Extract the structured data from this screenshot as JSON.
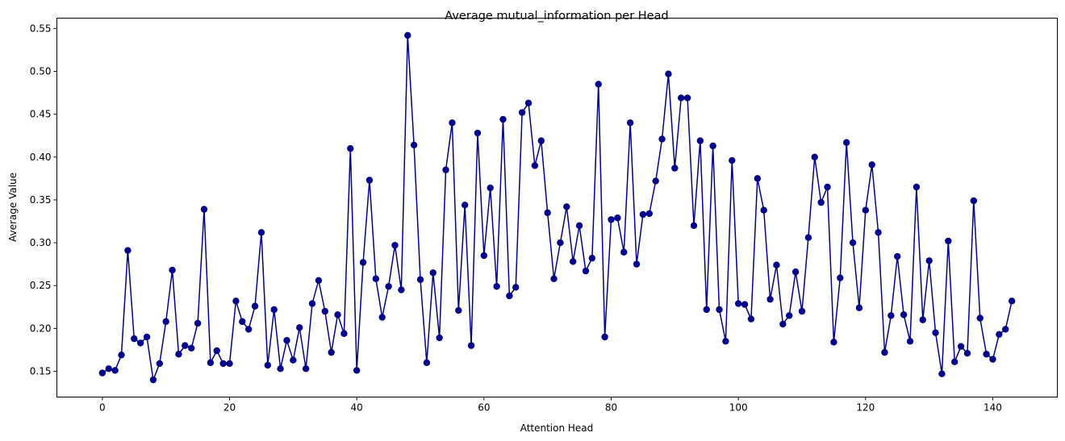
{
  "chart_data": {
    "type": "line",
    "title": "Average mutual_information per Head",
    "xlabel": "Attention Head",
    "ylabel": "Average Value",
    "xlim": [
      -7.15,
      150.15
    ],
    "ylim": [
      0.1199,
      0.5621
    ],
    "xticks": [
      0,
      20,
      40,
      60,
      80,
      100,
      120,
      140
    ],
    "yticks": [
      0.15,
      0.2,
      0.25,
      0.3,
      0.35,
      0.4,
      0.45,
      0.5,
      0.55
    ],
    "ytick_labels": [
      "0.15",
      "0.20",
      "0.25",
      "0.30",
      "0.35",
      "0.40",
      "0.45",
      "0.50",
      "0.55"
    ],
    "grid": false,
    "color": "#00008b",
    "marker": "circle",
    "series": [
      {
        "x": [
          0,
          1,
          2,
          3,
          4,
          5,
          6,
          7,
          8,
          9,
          10,
          11,
          12,
          13,
          14,
          15,
          16,
          17,
          18,
          19,
          20,
          21,
          22,
          23,
          24,
          25,
          26,
          27,
          28,
          29,
          30,
          31,
          32,
          33,
          34,
          35,
          36,
          37,
          38,
          39,
          40,
          41,
          42,
          43,
          44,
          45,
          46,
          47,
          48,
          49,
          50,
          51,
          52,
          53,
          54,
          55,
          56,
          57,
          58,
          59,
          60,
          61,
          62,
          63,
          64,
          65,
          66,
          67,
          68,
          69,
          70,
          71,
          72,
          73,
          74,
          75,
          76,
          77,
          78,
          79,
          80,
          81,
          82,
          83,
          84,
          85,
          86,
          87,
          88,
          89,
          90,
          91,
          92,
          93,
          94,
          95,
          96,
          97,
          98,
          99,
          100,
          101,
          102,
          103,
          104,
          105,
          106,
          107,
          108,
          109,
          110,
          111,
          112,
          113,
          114,
          115,
          116,
          117,
          118,
          119,
          120,
          121,
          122,
          123,
          124,
          125,
          126,
          127,
          128,
          129,
          130,
          131,
          132,
          133,
          134,
          135,
          136,
          137,
          138,
          139,
          140,
          141,
          142,
          143
        ],
        "values": [
          0.148,
          0.153,
          0.151,
          0.169,
          0.291,
          0.188,
          0.183,
          0.19,
          0.14,
          0.159,
          0.208,
          0.268,
          0.17,
          0.18,
          0.177,
          0.206,
          0.339,
          0.16,
          0.174,
          0.159,
          0.159,
          0.232,
          0.208,
          0.199,
          0.226,
          0.312,
          0.157,
          0.222,
          0.153,
          0.186,
          0.163,
          0.201,
          0.153,
          0.229,
          0.256,
          0.22,
          0.172,
          0.216,
          0.194,
          0.41,
          0.151,
          0.277,
          0.373,
          0.258,
          0.213,
          0.249,
          0.297,
          0.245,
          0.542,
          0.414,
          0.257,
          0.16,
          0.265,
          0.189,
          0.385,
          0.44,
          0.221,
          0.344,
          0.18,
          0.428,
          0.285,
          0.364,
          0.249,
          0.444,
          0.238,
          0.248,
          0.452,
          0.463,
          0.39,
          0.419,
          0.335,
          0.258,
          0.3,
          0.342,
          0.278,
          0.32,
          0.267,
          0.282,
          0.485,
          0.19,
          0.327,
          0.329,
          0.289,
          0.44,
          0.275,
          0.333,
          0.334,
          0.372,
          0.421,
          0.497,
          0.387,
          0.469,
          0.469,
          0.32,
          0.419,
          0.222,
          0.413,
          0.222,
          0.185,
          0.396,
          0.229,
          0.228,
          0.211,
          0.375,
          0.338,
          0.234,
          0.274,
          0.205,
          0.215,
          0.266,
          0.22,
          0.306,
          0.4,
          0.347,
          0.365,
          0.184,
          0.259,
          0.417,
          0.3,
          0.224,
          0.338,
          0.391,
          0.312,
          0.172,
          0.215,
          0.284,
          0.216,
          0.185,
          0.365,
          0.21,
          0.279,
          0.195,
          0.147,
          0.302,
          0.161,
          0.179,
          0.171,
          0.349,
          0.212,
          0.17,
          0.164,
          0.193,
          0.199,
          0.232
        ]
      }
    ]
  }
}
